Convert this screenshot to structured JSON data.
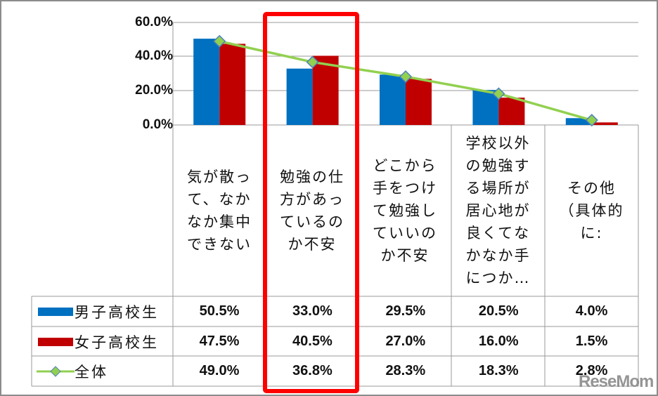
{
  "chart_data": {
    "type": "bar",
    "title": "",
    "xlabel": "",
    "ylabel": "",
    "ylim": [
      0,
      60
    ],
    "y_ticks": [
      "60.0%",
      "40.0%",
      "20.0%",
      "0.0%"
    ],
    "grid": true,
    "legend_position": "data-table-left",
    "categories": [
      "気が散って、なかなか集中できない",
      "勉強の仕方があっているのか不安",
      "どこから手をつけて勉強していいのか不安",
      "学校以外の勉強する場所が居心地が良くてなかなか手につか…",
      "その他（具体的に:"
    ],
    "series": [
      {
        "name": "男子高校生",
        "type": "bar",
        "color": "#0070c0",
        "values": [
          50.5,
          33.0,
          29.5,
          20.5,
          4.0
        ]
      },
      {
        "name": "女子高校生",
        "type": "bar",
        "color": "#c00000",
        "values": [
          47.5,
          40.5,
          27.0,
          16.0,
          1.5
        ]
      },
      {
        "name": "全体",
        "type": "line",
        "color": "#92d050",
        "marker": "diamond",
        "values": [
          49.0,
          36.8,
          28.3,
          18.3,
          2.8
        ]
      }
    ],
    "table": {
      "rows": [
        {
          "label": "男子高校生",
          "cells": [
            "50.5%",
            "33.0%",
            "29.5%",
            "20.5%",
            "4.0%"
          ]
        },
        {
          "label": "女子高校生",
          "cells": [
            "47.5%",
            "40.5%",
            "27.0%",
            "16.0%",
            "1.5%"
          ]
        },
        {
          "label": "全体",
          "cells": [
            "49.0%",
            "36.8%",
            "28.3%",
            "18.3%",
            "2.8%"
          ]
        }
      ]
    },
    "annotations": [
      "red highlight box around category 2: 勉強の仕方があっているのか不安"
    ]
  },
  "axis": {
    "y_ticks": [
      "60.0%",
      "40.0%",
      "20.0%",
      "0.0%"
    ]
  },
  "categories": [
    "気が散って、なかなか集中できない",
    "勉強の仕方があっているのか不安",
    "どこから手をつけて勉強していいのか不安",
    "学校以外の勉強する場所が居心地が良くてなかなか手につか…",
    "その他（具体的に:"
  ],
  "legend": [
    "男子高校生",
    "女子高校生",
    "全体"
  ],
  "rows": [
    [
      "50.5%",
      "33.0%",
      "29.5%",
      "20.5%",
      "4.0%"
    ],
    [
      "47.5%",
      "40.5%",
      "27.0%",
      "16.0%",
      "1.5%"
    ],
    [
      "49.0%",
      "36.8%",
      "28.3%",
      "18.3%",
      "2.8%"
    ]
  ],
  "watermark": "ReseMom"
}
